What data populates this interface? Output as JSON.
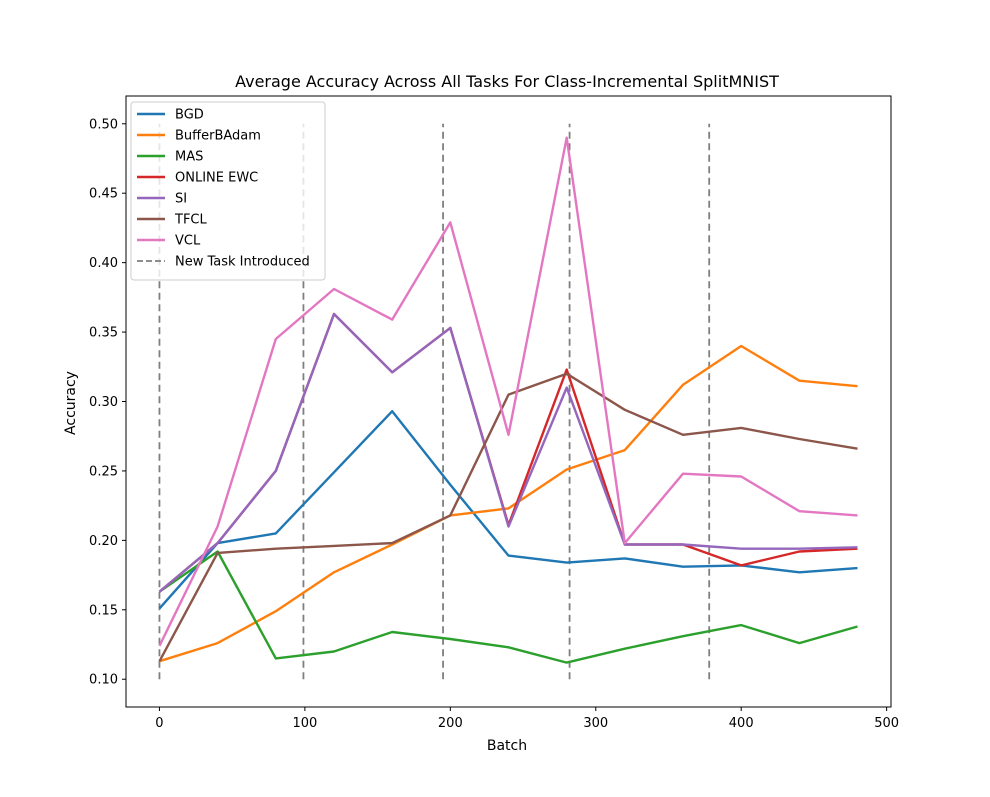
{
  "chart_data": {
    "type": "line",
    "title": "Average Accuracy Across All Tasks For Class-Incremental SplitMNIST",
    "xlabel": "Batch",
    "ylabel": "Accuracy",
    "xlim": [
      -23,
      503
    ],
    "ylim": [
      0.08,
      0.52
    ],
    "xticks": [
      0,
      100,
      200,
      300,
      400,
      500
    ],
    "yticks": [
      0.1,
      0.15,
      0.2,
      0.25,
      0.3,
      0.35,
      0.4,
      0.45,
      0.5
    ],
    "legend_position": "upper-left",
    "grid": false,
    "x": [
      0,
      40,
      80,
      120,
      160,
      200,
      240,
      280,
      320,
      360,
      400,
      440,
      480
    ],
    "series": [
      {
        "name": "BGD",
        "color": "#1f77b4",
        "values": [
          0.151,
          0.198,
          0.205,
          0.249,
          0.293,
          0.24,
          0.189,
          0.184,
          0.187,
          0.181,
          0.182,
          0.177,
          0.18
        ]
      },
      {
        "name": "BufferBAdam",
        "color": "#ff7f0e",
        "values": [
          0.113,
          0.126,
          0.149,
          0.177,
          0.197,
          0.218,
          0.223,
          0.251,
          0.265,
          0.312,
          0.34,
          0.315,
          0.311
        ]
      },
      {
        "name": "MAS",
        "color": "#2ca02c",
        "values": [
          0.163,
          0.192,
          0.115,
          0.12,
          0.134,
          0.129,
          0.123,
          0.112,
          0.122,
          0.131,
          0.139,
          0.126,
          0.138
        ]
      },
      {
        "name": "ONLINE EWC",
        "color": "#d62728",
        "values": [
          0.163,
          0.198,
          0.25,
          0.363,
          0.321,
          0.353,
          0.211,
          0.323,
          0.197,
          0.197,
          0.182,
          0.192,
          0.194
        ]
      },
      {
        "name": "SI",
        "color": "#9467bd",
        "values": [
          0.163,
          0.198,
          0.25,
          0.363,
          0.321,
          0.353,
          0.21,
          0.31,
          0.197,
          0.197,
          0.194,
          0.194,
          0.195
        ]
      },
      {
        "name": "TFCL",
        "color": "#8c564b",
        "values": [
          0.113,
          0.191,
          0.194,
          0.196,
          0.198,
          0.218,
          0.305,
          0.32,
          0.294,
          0.276,
          0.281,
          0.273,
          0.266
        ]
      },
      {
        "name": "VCL",
        "color": "#e377c2",
        "values": [
          0.124,
          0.21,
          0.345,
          0.381,
          0.359,
          0.429,
          0.276,
          0.49,
          0.198,
          0.248,
          0.246,
          0.221,
          0.218
        ]
      }
    ],
    "task_markers": {
      "name": "New Task Introduced",
      "color": "#7f7f7f",
      "x": [
        0,
        99,
        195,
        282,
        378
      ],
      "y_range": [
        0.1,
        0.5
      ]
    }
  }
}
